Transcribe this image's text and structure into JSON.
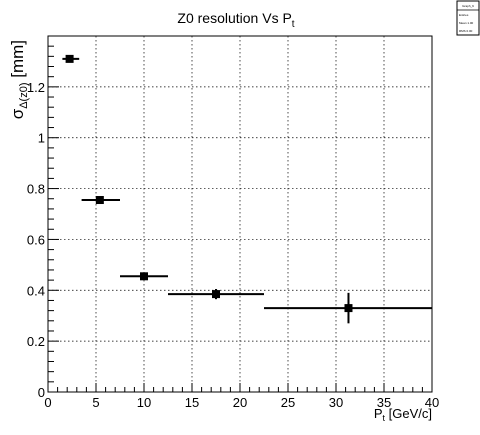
{
  "chart_data": {
    "type": "scatter",
    "title": "Z0 resolution Vs P",
    "title_sub": "t",
    "xlabel": "P",
    "xlabel_sub": "t",
    "xlabel_unit": " [GeV/c]",
    "ylabel": "σ",
    "ylabel_sub": "Δ(z0)",
    "ylabel_unit": " [mm]",
    "xlim": [
      0,
      40
    ],
    "ylim": [
      0,
      1.4
    ],
    "xticks": [
      0,
      5,
      10,
      15,
      20,
      25,
      30,
      35,
      40
    ],
    "xtick_labels": [
      "0",
      "5",
      "10",
      "15",
      "20",
      "25",
      "30",
      "35",
      "40"
    ],
    "yticks": [
      0,
      0.2,
      0.4,
      0.6,
      0.8,
      1,
      1.2
    ],
    "ytick_labels": [
      "0",
      "0.2",
      "0.4",
      "0.6",
      "0.8",
      "1",
      "1.2"
    ],
    "grid": true,
    "marker": "square",
    "color": "#000000",
    "points": [
      {
        "x": 2.25,
        "y": 1.31,
        "xlo": 1.5,
        "xhi": 3.25,
        "ylo": 1.3,
        "yhi": 1.32
      },
      {
        "x": 5.4,
        "y": 0.755,
        "xlo": 3.5,
        "xhi": 7.5,
        "ylo": 0.745,
        "yhi": 0.765
      },
      {
        "x": 10.0,
        "y": 0.455,
        "xlo": 7.5,
        "xhi": 12.5,
        "ylo": 0.445,
        "yhi": 0.465
      },
      {
        "x": 17.5,
        "y": 0.385,
        "xlo": 12.5,
        "xhi": 22.5,
        "ylo": 0.365,
        "yhi": 0.405
      },
      {
        "x": 31.3,
        "y": 0.33,
        "xlo": 22.5,
        "xhi": 40.0,
        "ylo": 0.27,
        "yhi": 0.39
      }
    ],
    "stats_box": {
      "name": "Graph_9",
      "lines": [
        "Entries",
        "Mean   1.00",
        "RMS    0.00"
      ]
    }
  }
}
